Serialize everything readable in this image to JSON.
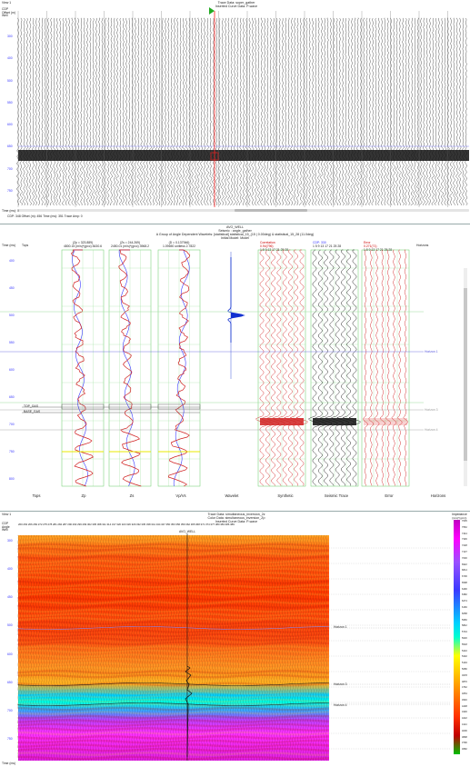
{
  "top": {
    "view_label": "View 1",
    "title_line1": "Trace Data: super_gather",
    "title_line2": "Inserted Curve Data: P-wave",
    "row_labels": [
      "CDP",
      "Offset (m)",
      "Well"
    ],
    "time_labels": [
      "300",
      "400",
      "500",
      "550",
      "600",
      "650",
      "700",
      "750"
    ],
    "status": "Time (ms): 0",
    "footer": "CDP: 348  Offset (m): 456  Time (ms): 351  Trace Amp: 0"
  },
  "middle": {
    "title_line1": "AVO_WELL",
    "title_line2": "Seismic : angle_gather",
    "title_line3": "A Group of Angle Dependent Wavelets: [statistical] statistical_15_(15 | 0.00deg) & statistical_15_28 (11.0deg)",
    "title_line4": "Initial Model: Model",
    "time_header": "Time (ms)",
    "tops_header": "Tops",
    "time_labels": [
      "400",
      "450",
      "500",
      "550",
      "600",
      "650",
      "700",
      "750",
      "800"
    ],
    "tops": [
      "TOP_GAS",
      "BASE_GAS"
    ],
    "zp_head": "(Zp = 323.889)",
    "zp_range": [
      "4800.15",
      "(m/s)*(g/cc)",
      "8430.6"
    ],
    "zs_head": "(Zs = 244.269)",
    "zs_range": [
      "2450.01",
      "(m/s)*(g/cc)",
      "3968.2"
    ],
    "vp_head": "(D = 0.137946)",
    "vp_range": [
      "1.09650",
      "unitless",
      "2.7822"
    ],
    "corr_head": "Correlation",
    "corr_value": "0.94(796)",
    "cdp_head": "CDP: 330",
    "error_head": "Error",
    "error_value": "0.271(71)",
    "axis_ticks": "1  5  9 13 17 21 25 28",
    "horizons_head": "Horizons",
    "horizon_labels": [
      "Horizon 1",
      "Horizon 3",
      "Horizon 4"
    ],
    "track_labels": [
      "Tops",
      "Zp",
      "Zs",
      "Vp/Vs",
      "Wavelet",
      "Synthetic",
      "Seismic Trace",
      "Error",
      "Horizons"
    ]
  },
  "bottom": {
    "view_label": "View 1",
    "title_line1": "Trace Data: simultaneous_inversion_2z",
    "title_line2": "Color Data: simultaneous_inversion_Zp",
    "title_line3": "Inserted Curve Data: P-wave",
    "row_labels": [
      "CDP",
      "Angle",
      "Well"
    ],
    "cdp_numbers": "260 263 266 269 272 275 278 281 284 287 290 293 296 299 302 305 308 311 314 317 320 323 326 329 332 335 338 341 344 347 350 353 356 359 362 365 368 371 374 377 380 383 386 389",
    "time_labels": [
      "300",
      "400",
      "450",
      "500",
      "600",
      "650",
      "700",
      "750"
    ],
    "well_name": "AVO_WELL",
    "horizon_labels": [
      "Horizon 1",
      "Horizon 3",
      "Horizon 4"
    ],
    "colorbar_title": "Impedance",
    "colorbar_unit": "((m/s)*(g/cc))",
    "colorbar_values": [
      "7635",
      "7552",
      "7444",
      "7336",
      "7228",
      "7137",
      "7030",
      "6922",
      "6814",
      "6706",
      "6598",
      "6490",
      "6382",
      "6274",
      "6166",
      "6058",
      "5950",
      "5842",
      "5734",
      "5626",
      "5518",
      "5410",
      "5302",
      "5194",
      "5086",
      "4978",
      "4870",
      "4762",
      "4654",
      "4546",
      "4438",
      "4330",
      "4222",
      "4114",
      "4006",
      "3898",
      "3790",
      "3682"
    ],
    "status": "Time (ms)"
  },
  "colors": {
    "grid_green": "#66cc66",
    "zp_curve": "#d02020",
    "model_curve": "#3a3aff",
    "horizon_yellow": "#e8e800",
    "cursor_red": "#ff2020"
  }
}
